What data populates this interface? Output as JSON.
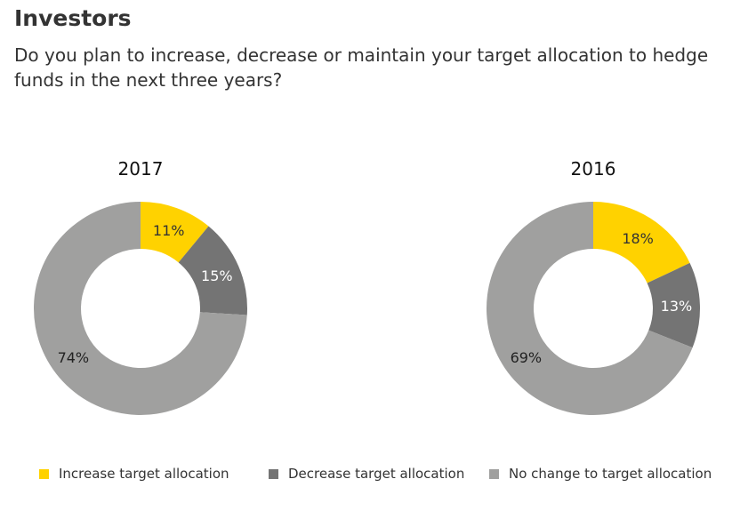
{
  "header": {
    "title": "Investors",
    "subtitle": "Do you plan to increase, decrease or maintain your target allocation to hedge funds in the next three years?"
  },
  "chart_data": [
    {
      "type": "pie",
      "variant": "donut",
      "title": "2017",
      "categories": [
        "Increase target allocation",
        "Decrease target allocation",
        "No change to target allocation"
      ],
      "values": [
        11,
        15,
        74
      ],
      "labels": [
        "11%",
        "15%",
        "74%"
      ],
      "colors": [
        "#FFD200",
        "#747474",
        "#A0A09F"
      ]
    },
    {
      "type": "pie",
      "variant": "donut",
      "title": "2016",
      "categories": [
        "Increase target allocation",
        "Decrease target allocation",
        "No change to target allocation"
      ],
      "values": [
        18,
        13,
        69
      ],
      "labels": [
        "18%",
        "13%",
        "69%"
      ],
      "colors": [
        "#FFD200",
        "#747474",
        "#A0A09F"
      ]
    }
  ],
  "legend": {
    "placement": "bottom",
    "items": [
      {
        "label": "Increase target allocation",
        "color": "#FFD200"
      },
      {
        "label": "Decrease target allocation",
        "color": "#747474"
      },
      {
        "label": "No change to target allocation",
        "color": "#A0A09F"
      }
    ]
  }
}
